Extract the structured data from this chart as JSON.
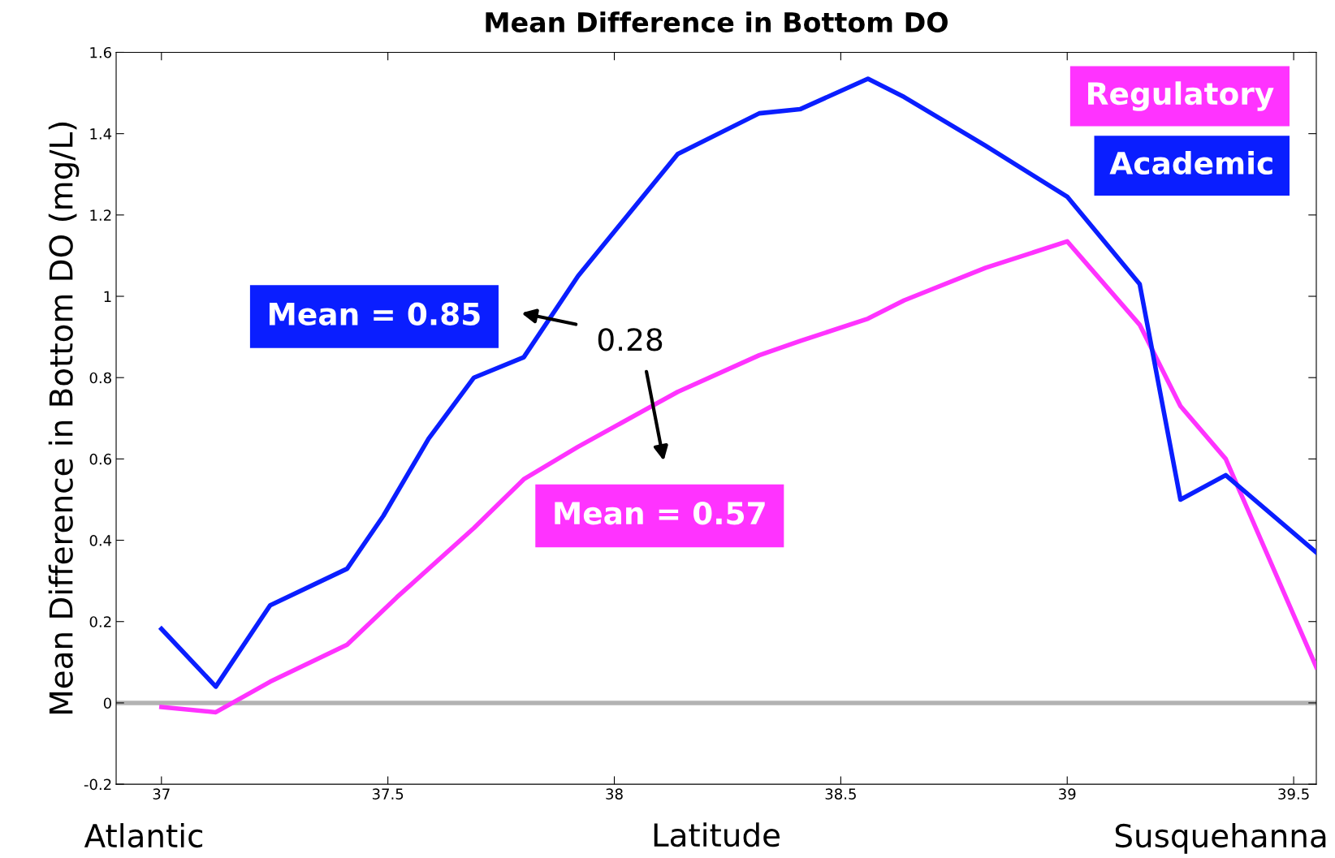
{
  "chart_data": {
    "type": "line",
    "title": "Mean Difference in Bottom DO",
    "xlabel": "Latitude",
    "ylabel": "Mean Difference in Bottom DO (mg/L)",
    "series": [
      {
        "name": "Regulatory",
        "color": "#ff33ff",
        "x": [
          37.0,
          37.12,
          37.24,
          37.41,
          37.52,
          37.69,
          37.8,
          37.92,
          38.14,
          38.32,
          38.41,
          38.56,
          38.64,
          38.82,
          39.0,
          39.16,
          39.25,
          39.35,
          39.55
        ],
        "values": [
          -0.01,
          -0.023,
          0.052,
          0.143,
          0.26,
          0.43,
          0.55,
          0.63,
          0.765,
          0.855,
          0.89,
          0.945,
          0.99,
          1.07,
          1.135,
          0.93,
          0.73,
          0.6,
          0.088
        ]
      },
      {
        "name": "Academic",
        "color": "#0a1eff",
        "x": [
          37.0,
          37.12,
          37.24,
          37.41,
          37.49,
          37.59,
          37.69,
          37.8,
          37.92,
          38.14,
          38.32,
          38.41,
          38.56,
          38.64,
          38.82,
          39.0,
          39.16,
          39.25,
          39.35,
          39.55
        ],
        "values": [
          0.182,
          0.04,
          0.24,
          0.33,
          0.46,
          0.65,
          0.8,
          0.85,
          1.05,
          1.35,
          1.45,
          1.46,
          1.535,
          1.49,
          1.37,
          1.245,
          1.03,
          0.5,
          0.56,
          0.37
        ]
      }
    ],
    "xlim": [
      36.9,
      39.55
    ],
    "xticks": [
      37,
      37.5,
      38,
      38.5,
      39,
      39.5
    ],
    "ylim": [
      -0.2,
      1.6
    ],
    "yticks": [
      -0.2,
      0,
      0.2,
      0.4,
      0.6,
      0.8,
      1,
      1.2,
      1.4,
      1.6
    ],
    "ref_lines": [
      {
        "axis": "y",
        "value": 0,
        "color": "#b3b3b3"
      }
    ],
    "annotations": [
      "Mean = 0.85",
      "Mean = 0.57",
      "0.28",
      "Atlantic",
      "Susquehanna"
    ],
    "legend": "top right",
    "grid": false,
    "line_style": "solid",
    "marker": "none"
  }
}
